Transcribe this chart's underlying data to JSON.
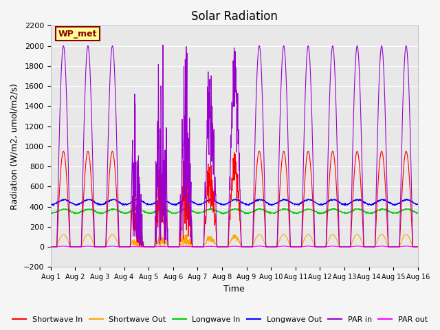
{
  "title": "Solar Radiation",
  "xlabel": "Time",
  "ylabel": "Radiation (W/m2, umol/m2/s)",
  "ylim": [
    -200,
    2200
  ],
  "xtick_labels": [
    "Aug 1",
    "Aug 2",
    "Aug 3",
    "Aug 4",
    "Aug 5",
    "Aug 6",
    "Aug 7",
    "Aug 8",
    "Aug 9",
    "Aug 10",
    "Aug 11",
    "Aug 12",
    "Aug 13",
    "Aug 14",
    "Aug 15",
    "Aug 16"
  ],
  "ytick_vals": [
    -200,
    0,
    200,
    400,
    600,
    800,
    1000,
    1200,
    1400,
    1600,
    1800,
    2000,
    2200
  ],
  "colors": {
    "shortwave_in": "#ff0000",
    "shortwave_out": "#ffa500",
    "longwave_in": "#00cc00",
    "longwave_out": "#0000ff",
    "par_in": "#9900cc",
    "par_out": "#ff00ff"
  },
  "label_box_text": "WP_met",
  "label_box_facecolor": "#ffff99",
  "label_box_edgecolor": "#8b0000",
  "legend_labels": [
    "Shortwave In",
    "Shortwave Out",
    "Longwave In",
    "Longwave Out",
    "PAR in",
    "PAR out"
  ],
  "plot_bg_color": "#e8e8e8",
  "fig_bg_color": "#f5f5f5",
  "title_fontsize": 12,
  "axis_label_fontsize": 9,
  "tick_fontsize": 8,
  "legend_fontsize": 8
}
